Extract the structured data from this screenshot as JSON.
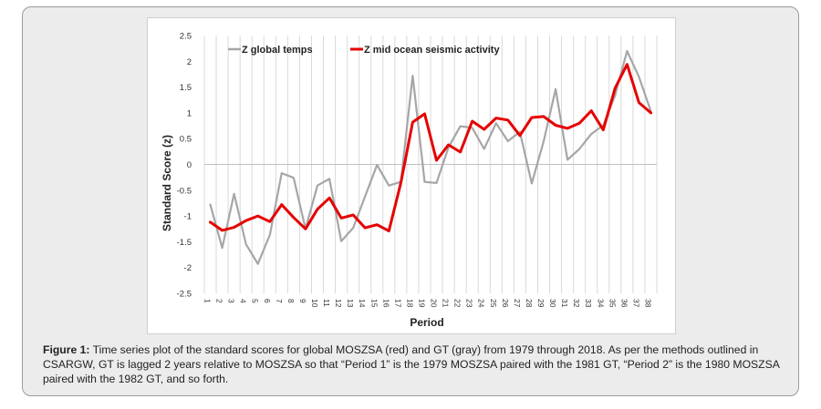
{
  "figure": {
    "label": "Figure 1:",
    "caption": " Time series plot of the standard scores for global MOSZSA (red) and GT (gray) from 1979 through 2018. As per the methods outlined in CSARGW, GT is lagged 2 years relative to MOSZSA so that “Period 1” is the 1979 MOSZSA paired with the 1981 GT, “Period 2” is the 1980 MOSZSA paired with the 1982 GT, and so forth."
  },
  "chart_data": {
    "type": "line",
    "title": "",
    "xlabel": "Period",
    "ylabel": "Standard Score (z)",
    "ylim": [
      -2.5,
      2.5
    ],
    "yticks": [
      "2.5",
      "2",
      "1.5",
      "1",
      "0.5",
      "0",
      "-0.5",
      "-1",
      "-1.5",
      "-2",
      "-2.5"
    ],
    "categories": [
      "1",
      "2",
      "3",
      "4",
      "5",
      "6",
      "7",
      "8",
      "9",
      "10",
      "11",
      "12",
      "13",
      "14",
      "15",
      "16",
      "17",
      "18",
      "19",
      "20",
      "21",
      "22",
      "23",
      "24",
      "25",
      "26",
      "27",
      "28",
      "29",
      "30",
      "31",
      "32",
      "33",
      "34",
      "35",
      "36",
      "37",
      "38"
    ],
    "grid": "vertical gridlines",
    "legend_position": "top-left",
    "series": [
      {
        "name": "Z global temps",
        "color": "#a6a6a6",
        "values": [
          -0.78,
          -1.62,
          -0.57,
          -1.55,
          -1.93,
          -1.37,
          -0.17,
          -0.26,
          -1.25,
          -0.41,
          -0.28,
          -1.49,
          -1.23,
          -0.62,
          -0.01,
          -0.41,
          -0.34,
          1.72,
          -0.34,
          -0.36,
          0.33,
          0.74,
          0.71,
          0.3,
          0.8,
          0.45,
          0.63,
          -0.37,
          0.45,
          1.46,
          0.09,
          0.3,
          0.59,
          0.76,
          1.34,
          2.2,
          1.7,
          1.03
        ]
      },
      {
        "name": "Z mid ocean seismic activity",
        "color": "#e60000",
        "values": [
          -1.12,
          -1.28,
          -1.22,
          -1.09,
          -1.0,
          -1.11,
          -0.78,
          -1.03,
          -1.25,
          -0.87,
          -0.65,
          -1.04,
          -0.98,
          -1.23,
          -1.17,
          -1.29,
          -0.36,
          0.82,
          0.98,
          0.08,
          0.38,
          0.24,
          0.84,
          0.68,
          0.9,
          0.86,
          0.56,
          0.91,
          0.93,
          0.76,
          0.7,
          0.8,
          1.04,
          0.67,
          1.48,
          1.94,
          1.2,
          1.0
        ]
      }
    ]
  }
}
